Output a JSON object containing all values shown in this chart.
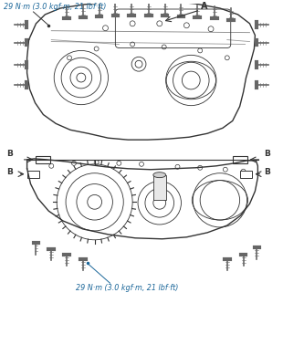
{
  "background_color": "#ffffff",
  "label_top": "29 N·m (3.0 kgf·m, 21 lbf·ft)",
  "label_bottom": "29 N·m (3.0 kgf·m, 21 lbf·ft)",
  "label_A": "A",
  "label_B": "B",
  "line_color": "#333333",
  "label_color": "#1a6699",
  "fig_width": 3.1,
  "fig_height": 3.78,
  "dpi": 100
}
